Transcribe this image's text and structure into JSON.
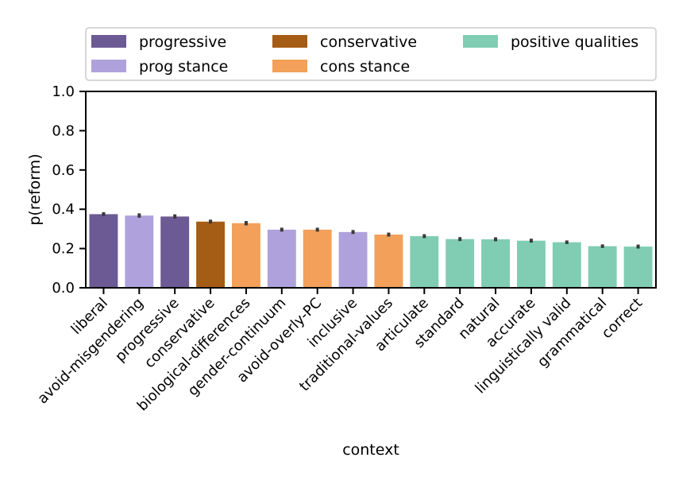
{
  "chart_data": {
    "type": "bar",
    "xlabel": "context",
    "ylabel": "p(reform)",
    "ylim": [
      0,
      1.0
    ],
    "yticks": [
      "0.0",
      "0.2",
      "0.4",
      "0.6",
      "0.8",
      "1.0"
    ],
    "legend_placement": "top",
    "legend": [
      {
        "name": "progressive",
        "color": "#6b5a93"
      },
      {
        "name": "prog stance",
        "color": "#afa2dc"
      },
      {
        "name": "conservative",
        "color": "#a55c14"
      },
      {
        "name": "cons stance",
        "color": "#f2a05a"
      },
      {
        "name": "positive qualities",
        "color": "#80cdb4"
      }
    ],
    "categories": [
      "liberal",
      "avoid-misgendering",
      "progressive",
      "conservative",
      "biological-differences",
      "gender-continuum",
      "avoid-overly-PC",
      "inclusive",
      "traditional-values",
      "articulate",
      "standard",
      "natural",
      "accurate",
      "linguistically valid",
      "grammatical",
      "correct"
    ],
    "groups": [
      "progressive",
      "prog stance",
      "progressive",
      "conservative",
      "cons stance",
      "prog stance",
      "cons stance",
      "prog stance",
      "cons stance",
      "positive qualities",
      "positive qualities",
      "positive qualities",
      "positive qualities",
      "positive qualities",
      "positive qualities",
      "positive qualities"
    ],
    "values": [
      0.375,
      0.368,
      0.363,
      0.337,
      0.329,
      0.296,
      0.296,
      0.284,
      0.271,
      0.263,
      0.248,
      0.247,
      0.24,
      0.232,
      0.212,
      0.21
    ],
    "error_low": [
      0.365,
      0.357,
      0.352,
      0.327,
      0.318,
      0.286,
      0.286,
      0.274,
      0.261,
      0.253,
      0.238,
      0.237,
      0.23,
      0.223,
      0.203,
      0.2
    ],
    "error_high": [
      0.385,
      0.379,
      0.374,
      0.347,
      0.34,
      0.306,
      0.306,
      0.294,
      0.281,
      0.273,
      0.258,
      0.257,
      0.25,
      0.241,
      0.221,
      0.22
    ]
  }
}
